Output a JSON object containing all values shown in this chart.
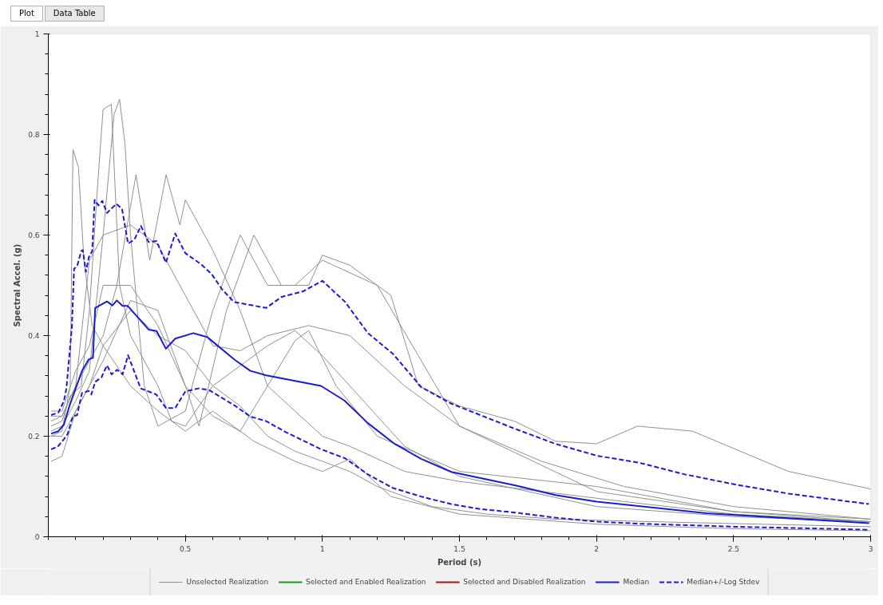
{
  "chart_data": {
    "type": "line",
    "xlabel": "Period (s)",
    "ylabel": "Spectral Accel. (g)",
    "annotations": [
      "Plot",
      "Data Table"
    ],
    "xlim": [
      0,
      3
    ],
    "ylim": [
      0,
      1
    ],
    "xticks": [
      0.5,
      1,
      1.5,
      2,
      2.5,
      3
    ],
    "yticks": [
      0,
      0.2,
      0.4,
      0.6,
      0.8,
      1
    ],
    "grid": false,
    "legend": "bottom",
    "marker": "none",
    "series": [
      {
        "name": "Unselected Realization",
        "color": "#909090",
        "line_style": "solid",
        "x": [
          0.01,
          0.05,
          0.08,
          0.09,
          0.11,
          0.13,
          0.16,
          0.2,
          0.3,
          0.4,
          0.5,
          0.6,
          0.75,
          0.9,
          1.0,
          1.1,
          1.25,
          1.5,
          2,
          2.5,
          3
        ],
        "values": [
          0.2,
          0.21,
          0.3,
          0.77,
          0.735,
          0.55,
          0.42,
          0.38,
          0.3,
          0.25,
          0.21,
          0.25,
          0.19,
          0.15,
          0.13,
          0.155,
          0.08,
          0.045,
          0.025,
          0.016,
          0.012
        ]
      },
      {
        "color": "#909090",
        "line_style": "solid",
        "x": [
          0.01,
          0.05,
          0.08,
          0.12,
          0.15,
          0.18,
          0.2,
          0.23,
          0.26,
          0.3,
          0.35,
          0.4,
          0.45,
          0.5,
          0.6,
          0.7,
          0.8,
          0.9,
          1.0,
          1.1,
          1.3,
          1.5,
          2,
          2.5,
          3
        ],
        "values": [
          0.22,
          0.23,
          0.28,
          0.3,
          0.45,
          0.7,
          0.85,
          0.86,
          0.5,
          0.4,
          0.35,
          0.3,
          0.23,
          0.22,
          0.3,
          0.34,
          0.38,
          0.41,
          0.36,
          0.3,
          0.18,
          0.12,
          0.06,
          0.04,
          0.03
        ]
      },
      {
        "color": "#909090",
        "line_style": "solid",
        "x": [
          0.01,
          0.05,
          0.1,
          0.15,
          0.2,
          0.24,
          0.26,
          0.28,
          0.3,
          0.35,
          0.4,
          0.5,
          0.6,
          0.7,
          0.8,
          0.9,
          1.0,
          1.2,
          1.5,
          2,
          2.5,
          3
        ],
        "values": [
          0.21,
          0.22,
          0.27,
          0.33,
          0.6,
          0.84,
          0.87,
          0.78,
          0.6,
          0.3,
          0.22,
          0.25,
          0.45,
          0.6,
          0.5,
          0.5,
          0.55,
          0.5,
          0.22,
          0.09,
          0.05,
          0.035
        ]
      },
      {
        "color": "#909090",
        "line_style": "solid",
        "x": [
          0.01,
          0.05,
          0.1,
          0.15,
          0.2,
          0.25,
          0.32,
          0.37,
          0.43,
          0.48,
          0.5,
          0.6,
          0.7,
          0.8,
          0.9,
          1.0,
          1.1,
          1.3,
          1.5,
          1.8,
          2.1,
          2.5,
          3
        ],
        "values": [
          0.23,
          0.24,
          0.3,
          0.35,
          0.4,
          0.5,
          0.72,
          0.55,
          0.72,
          0.62,
          0.67,
          0.57,
          0.45,
          0.3,
          0.25,
          0.2,
          0.18,
          0.13,
          0.11,
          0.09,
          0.07,
          0.045,
          0.03
        ]
      },
      {
        "color": "#909090",
        "line_style": "solid",
        "x": [
          0.01,
          0.05,
          0.1,
          0.15,
          0.2,
          0.3,
          0.4,
          0.5,
          0.55,
          0.65,
          0.75,
          0.85,
          0.95,
          1.0,
          1.1,
          1.25,
          1.35,
          1.5,
          1.7,
          1.85,
          2.0,
          2.15,
          2.35,
          2.7,
          3
        ],
        "values": [
          0.25,
          0.25,
          0.33,
          0.38,
          0.5,
          0.5,
          0.42,
          0.3,
          0.22,
          0.45,
          0.6,
          0.5,
          0.5,
          0.56,
          0.54,
          0.48,
          0.3,
          0.26,
          0.23,
          0.19,
          0.185,
          0.22,
          0.21,
          0.13,
          0.095
        ]
      },
      {
        "color": "#909090",
        "line_style": "solid",
        "x": [
          0.01,
          0.05,
          0.1,
          0.15,
          0.2,
          0.3,
          0.4,
          0.5,
          0.6,
          0.7,
          0.8,
          0.9,
          0.95,
          1.05,
          1.2,
          1.5,
          2,
          2.5,
          3
        ],
        "values": [
          0.2,
          0.2,
          0.25,
          0.3,
          0.35,
          0.47,
          0.45,
          0.3,
          0.24,
          0.21,
          0.3,
          0.39,
          0.41,
          0.3,
          0.2,
          0.13,
          0.1,
          0.05,
          0.03
        ]
      },
      {
        "color": "#909090",
        "line_style": "solid",
        "x": [
          0.01,
          0.05,
          0.1,
          0.15,
          0.2,
          0.3,
          0.4,
          0.5,
          0.6,
          0.7,
          0.8,
          0.9,
          1.0,
          1.1,
          1.2,
          1.4,
          1.6,
          1.85,
          2.2,
          2.6,
          3
        ],
        "values": [
          0.15,
          0.16,
          0.25,
          0.3,
          0.38,
          0.45,
          0.4,
          0.37,
          0.3,
          0.26,
          0.2,
          0.17,
          0.15,
          0.13,
          0.1,
          0.06,
          0.045,
          0.035,
          0.03,
          0.025,
          0.02
        ]
      },
      {
        "color": "#909090",
        "line_style": "solid",
        "x": [
          0.01,
          0.05,
          0.1,
          0.15,
          0.2,
          0.3,
          0.4,
          0.5,
          0.6,
          0.7,
          0.8,
          0.95,
          1.1,
          1.3,
          1.5,
          1.8,
          2.1,
          2.5,
          3
        ],
        "values": [
          0.24,
          0.24,
          0.3,
          0.55,
          0.6,
          0.62,
          0.58,
          0.48,
          0.38,
          0.37,
          0.4,
          0.42,
          0.4,
          0.3,
          0.22,
          0.15,
          0.1,
          0.06,
          0.035
        ]
      },
      {
        "name": "Selected and Enabled Realization",
        "color": "#1a9a1a",
        "line_style": "solid"
      },
      {
        "name": "Selected and Disabled Realization",
        "color": "#a01818",
        "line_style": "solid"
      },
      {
        "name": "Median",
        "color": "#1c1cd0",
        "line_style": "solid",
        "x": [
          0.01,
          0.037,
          0.057,
          0.077,
          0.1,
          0.123,
          0.134,
          0.148,
          0.163,
          0.171,
          0.214,
          0.234,
          0.25,
          0.271,
          0.29,
          0.366,
          0.395,
          0.429,
          0.463,
          0.529,
          0.58,
          0.68,
          0.737,
          0.795,
          0.995,
          1.08,
          1.166,
          1.26,
          1.36,
          1.47,
          1.705,
          1.85,
          2.0,
          2.4,
          2.995
        ],
        "values": [
          0.205,
          0.21,
          0.223,
          0.26,
          0.295,
          0.33,
          0.34,
          0.353,
          0.356,
          0.455,
          0.468,
          0.46,
          0.47,
          0.459,
          0.459,
          0.412,
          0.409,
          0.374,
          0.394,
          0.405,
          0.397,
          0.352,
          0.33,
          0.321,
          0.3,
          0.271,
          0.226,
          0.186,
          0.155,
          0.129,
          0.102,
          0.083,
          0.07,
          0.047,
          0.027
        ]
      },
      {
        "name": "Median+/-Log Stdev",
        "color": "#1c1cd0",
        "line_style": "dashed",
        "x": [
          0.01,
          0.037,
          0.057,
          0.066,
          0.086,
          0.094,
          0.105,
          0.12,
          0.126,
          0.137,
          0.148,
          0.16,
          0.169,
          0.183,
          0.197,
          0.214,
          0.248,
          0.269,
          0.291,
          0.314,
          0.338,
          0.366,
          0.395,
          0.429,
          0.463,
          0.5,
          0.557,
          0.595,
          0.634,
          0.677,
          0.795,
          0.851,
          0.929,
          1.0,
          1.083,
          1.166,
          1.257,
          1.36,
          1.469,
          1.706,
          1.849,
          2.003,
          2.157,
          2.323,
          2.506,
          2.697,
          2.994
        ],
        "values": [
          0.242,
          0.247,
          0.27,
          0.295,
          0.417,
          0.533,
          0.538,
          0.568,
          0.57,
          0.527,
          0.556,
          0.568,
          0.67,
          0.659,
          0.668,
          0.644,
          0.662,
          0.652,
          0.583,
          0.591,
          0.618,
          0.586,
          0.588,
          0.545,
          0.603,
          0.564,
          0.542,
          0.523,
          0.492,
          0.467,
          0.455,
          0.477,
          0.488,
          0.509,
          0.467,
          0.405,
          0.364,
          0.298,
          0.265,
          0.214,
          0.185,
          0.161,
          0.147,
          0.124,
          0.104,
          0.086,
          0.065
        ]
      },
      {
        "color": "#1c1cd0",
        "line_style": "dashed",
        "x": [
          0.01,
          0.034,
          0.057,
          0.071,
          0.089,
          0.105,
          0.123,
          0.148,
          0.157,
          0.171,
          0.194,
          0.214,
          0.231,
          0.251,
          0.271,
          0.291,
          0.337,
          0.394,
          0.429,
          0.463,
          0.5,
          0.548,
          0.586,
          0.634,
          0.68,
          0.737,
          0.795,
          0.863,
          0.995,
          1.083,
          1.166,
          1.257,
          1.36,
          1.469,
          1.577,
          1.706,
          1.849,
          2.003,
          2.157,
          2.506,
          2.994
        ],
        "values": [
          0.174,
          0.179,
          0.194,
          0.205,
          0.239,
          0.242,
          0.286,
          0.29,
          0.283,
          0.308,
          0.317,
          0.341,
          0.323,
          0.332,
          0.323,
          0.361,
          0.295,
          0.283,
          0.256,
          0.256,
          0.289,
          0.295,
          0.292,
          0.276,
          0.261,
          0.239,
          0.23,
          0.209,
          0.174,
          0.156,
          0.124,
          0.097,
          0.08,
          0.065,
          0.055,
          0.048,
          0.038,
          0.03,
          0.026,
          0.02,
          0.014
        ]
      }
    ]
  }
}
